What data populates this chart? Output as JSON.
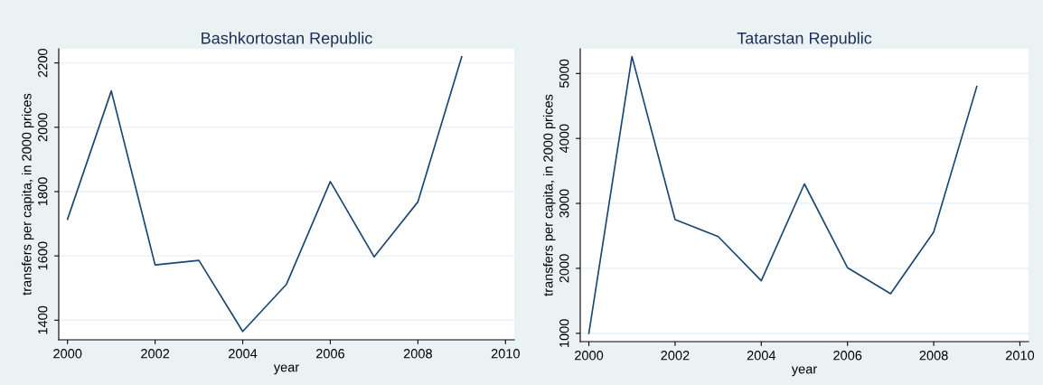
{
  "chart_data": [
    {
      "type": "line",
      "title": "Bashkortostan Republic",
      "xlabel": "year",
      "ylabel": "transfers per capita, in 2000 prices",
      "x": [
        2000,
        2001,
        2002,
        2003,
        2004,
        2005,
        2006,
        2007,
        2008,
        2009
      ],
      "series": [
        {
          "color": "#1a476f",
          "values": [
            1714,
            2113,
            1572,
            1586,
            1365,
            1512,
            1831,
            1597,
            1768,
            2219
          ]
        }
      ],
      "xlim": [
        1999.8,
        2010.2
      ],
      "xticks": [
        2000,
        2002,
        2004,
        2006,
        2008,
        2010
      ],
      "ylim": [
        1339,
        2244
      ],
      "yticks": [
        1400,
        1600,
        1800,
        2000,
        2200
      ],
      "grid": "y",
      "legend": false
    },
    {
      "type": "line",
      "title": "Tatarstan Republic",
      "xlabel": "year",
      "ylabel": "transfers per capita, in 2000 prices",
      "x": [
        2000,
        2001,
        2002,
        2003,
        2004,
        2005,
        2006,
        2007,
        2008,
        2009
      ],
      "series": [
        {
          "color": "#1a476f",
          "values": [
            1000,
            5260,
            2750,
            2490,
            1810,
            3300,
            2010,
            1610,
            2560,
            4800
          ]
        }
      ],
      "xlim": [
        1999.8,
        2010.2
      ],
      "xticks": [
        2000,
        2002,
        2004,
        2006,
        2008,
        2010
      ],
      "ylim": [
        872,
        5380
      ],
      "yticks": [
        1000,
        2000,
        3000,
        4000,
        5000
      ],
      "grid": "y",
      "legend": false
    }
  ]
}
